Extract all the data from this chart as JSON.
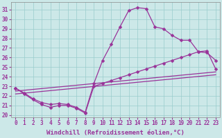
{
  "background_color": "#cce8e8",
  "grid_color": "#99cccc",
  "line_color": "#993399",
  "marker": "D",
  "marker_size": 2.5,
  "xlabel": "Windchill (Refroidissement éolien,°C)",
  "xlabel_fontsize": 6.5,
  "xtick_fontsize": 5.5,
  "ytick_fontsize": 5.5,
  "ylim": [
    19.8,
    31.8
  ],
  "xlim": [
    -0.5,
    23.5
  ],
  "xticks": [
    0,
    1,
    2,
    3,
    4,
    5,
    6,
    7,
    8,
    9,
    10,
    11,
    12,
    13,
    14,
    15,
    16,
    17,
    18,
    19,
    20,
    21,
    22,
    23
  ],
  "yticks": [
    20,
    21,
    22,
    23,
    24,
    25,
    26,
    27,
    28,
    29,
    30,
    31
  ],
  "line1_x": [
    0,
    1,
    2,
    3,
    4,
    5,
    6,
    7,
    8,
    9,
    10,
    11,
    12,
    13,
    14,
    15,
    16,
    17,
    18,
    19,
    20,
    21,
    22,
    23
  ],
  "line1_y": [
    22.8,
    22.3,
    21.7,
    21.3,
    21.1,
    21.2,
    21.1,
    20.8,
    20.3,
    23.3,
    25.7,
    27.4,
    29.2,
    30.9,
    31.2,
    31.1,
    29.2,
    29.0,
    28.3,
    27.8,
    27.8,
    26.6,
    26.5,
    25.7
  ],
  "line2_x": [
    0,
    1,
    2,
    3,
    4,
    5,
    6,
    7,
    8,
    9,
    10,
    11,
    12,
    13,
    14,
    15,
    16,
    17,
    18,
    19,
    20,
    21,
    22,
    23
  ],
  "line2_y": [
    22.8,
    22.2,
    21.6,
    21.1,
    20.8,
    21.0,
    21.0,
    20.7,
    20.2,
    23.0,
    23.3,
    23.6,
    23.9,
    24.2,
    24.5,
    24.8,
    25.1,
    25.4,
    25.7,
    26.0,
    26.3,
    26.6,
    26.7,
    24.8
  ],
  "line3_x": [
    0,
    23
  ],
  "line3_y": [
    22.5,
    24.5
  ],
  "line4_x": [
    0,
    23
  ],
  "line4_y": [
    22.2,
    24.2
  ]
}
